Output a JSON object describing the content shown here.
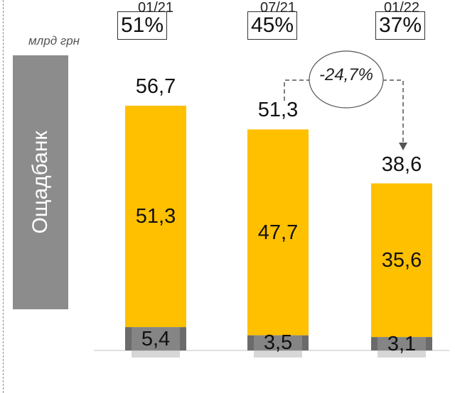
{
  "chart_data": {
    "type": "bar",
    "stacked": true,
    "unit": "млрд грн",
    "group_label": "Ощадбанк",
    "categories": [
      "01/21",
      "07/21",
      "01/22"
    ],
    "totals": [
      56.7,
      51.3,
      38.6
    ],
    "total_labels": [
      "56,7",
      "51,3",
      "38,6"
    ],
    "shares": [
      "51%",
      "45%",
      "37%"
    ],
    "series": [
      {
        "values": [
          5.4,
          3.5,
          3.1
        ],
        "labels": [
          "5,4",
          "3,5",
          "3,1"
        ],
        "color": "#6b6b6b"
      },
      {
        "values": [
          51.3,
          47.7,
          35.6
        ],
        "labels": [
          "51,3",
          "47,7",
          "35,6"
        ],
        "color": "#ffc000"
      }
    ],
    "change": {
      "from": "07/21",
      "to": "01/22",
      "label": "-24,7%"
    },
    "ylim": [
      0,
      56.7
    ],
    "grid": false
  }
}
